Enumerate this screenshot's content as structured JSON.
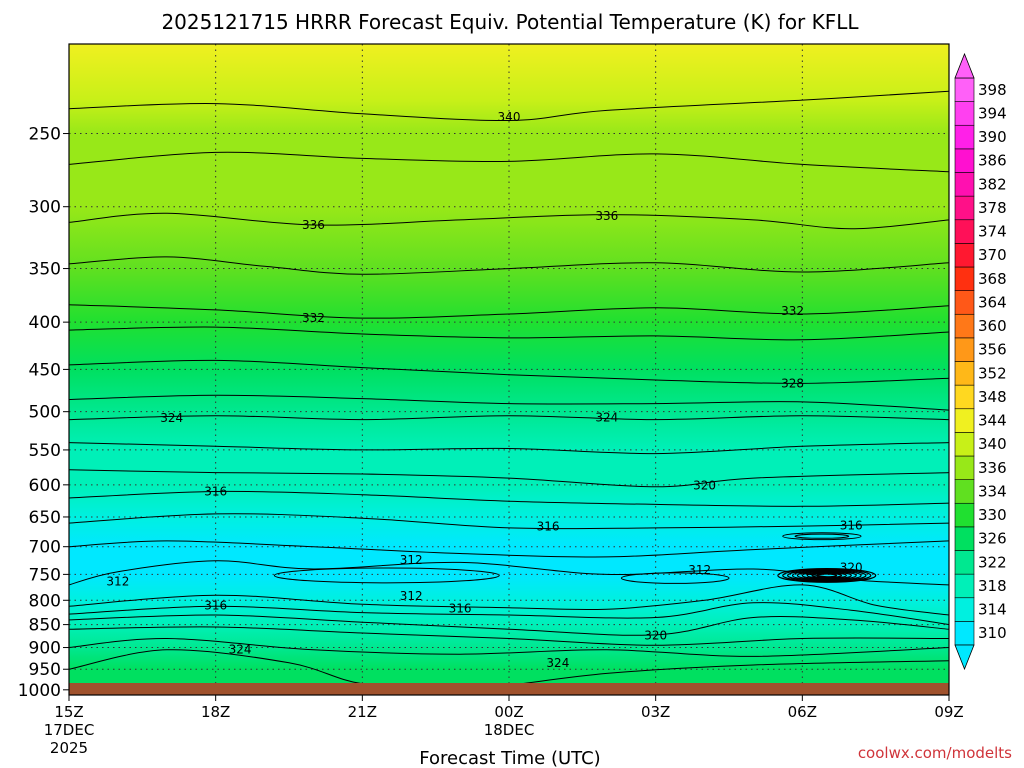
{
  "chart_data": {
    "type": "heatmap",
    "title": "2025121715 HRRR Forecast Equiv. Potential Temperature (K) for KFLL",
    "xlabel": "Forecast Time (UTC)",
    "ylabel": "",
    "credit": "coolwx.com/modelts",
    "x_ticks": [
      {
        "hour": 0,
        "label": "15Z",
        "sub": [
          "17DEC",
          "2025"
        ]
      },
      {
        "hour": 3,
        "label": "18Z",
        "sub": []
      },
      {
        "hour": 6,
        "label": "21Z",
        "sub": []
      },
      {
        "hour": 9,
        "label": "00Z",
        "sub": [
          "18DEC"
        ]
      },
      {
        "hour": 12,
        "label": "03Z",
        "sub": []
      },
      {
        "hour": 15,
        "label": "06Z",
        "sub": []
      },
      {
        "hour": 18,
        "label": "09Z",
        "sub": []
      }
    ],
    "xlim": [
      0,
      18
    ],
    "y_scale": "log-pressure",
    "y_ticks": [
      250,
      300,
      350,
      400,
      450,
      500,
      550,
      600,
      650,
      700,
      750,
      800,
      850,
      900,
      950,
      1000
    ],
    "ylim": [
      1013,
      200
    ],
    "colorbar": {
      "levels": [
        310,
        314,
        318,
        322,
        326,
        330,
        334,
        336,
        340,
        344,
        348,
        352,
        356,
        360,
        364,
        368,
        370,
        374,
        378,
        382,
        386,
        390,
        394,
        398
      ],
      "colors": [
        "#00e8ff",
        "#00f0e0",
        "#00f0b8",
        "#00e890",
        "#00e060",
        "#20e030",
        "#60e020",
        "#98e818",
        "#c8f018",
        "#f0f020",
        "#ffd820",
        "#ffb818",
        "#ff9818",
        "#ff7818",
        "#ff5818",
        "#ff3010",
        "#ff1830",
        "#ff1058",
        "#ff1088",
        "#ff10b0",
        "#ff10d0",
        "#ff20e8",
        "#ff40f0",
        "#ff60f8"
      ]
    },
    "profile": [
      {
        "p": 200,
        "theta": 345
      },
      {
        "p": 230,
        "theta": 341
      },
      {
        "p": 250,
        "theta": 339
      },
      {
        "p": 300,
        "theta": 336.5
      },
      {
        "p": 350,
        "theta": 334
      },
      {
        "p": 400,
        "theta": 331.5
      },
      {
        "p": 450,
        "theta": 329
      },
      {
        "p": 500,
        "theta": 325
      },
      {
        "p": 550,
        "theta": 321
      },
      {
        "p": 600,
        "theta": 318
      },
      {
        "p": 650,
        "theta": 315.5
      },
      {
        "p": 700,
        "theta": 312.5
      },
      {
        "p": 750,
        "theta": 311
      },
      {
        "p": 800,
        "theta": 314
      },
      {
        "p": 850,
        "theta": 319
      },
      {
        "p": 900,
        "theta": 323
      },
      {
        "p": 950,
        "theta": 326
      },
      {
        "p": 1000,
        "theta": 327
      }
    ],
    "contours": [
      {
        "theta": 340,
        "pts": [
          [
            0,
            235
          ],
          [
            3,
            232
          ],
          [
            6,
            238
          ],
          [
            9,
            242
          ],
          [
            11,
            236
          ],
          [
            15,
            230
          ],
          [
            18,
            225
          ]
        ]
      },
      {
        "theta": 338,
        "pts": [
          [
            0,
            270
          ],
          [
            3,
            262
          ],
          [
            6,
            266
          ],
          [
            9,
            268
          ],
          [
            12,
            263
          ],
          [
            15,
            270
          ],
          [
            18,
            275
          ]
        ]
      },
      {
        "theta": 336,
        "pts": [
          [
            0,
            312
          ],
          [
            2,
            305
          ],
          [
            5,
            314
          ],
          [
            8,
            310
          ],
          [
            11,
            306
          ],
          [
            14,
            310
          ],
          [
            16,
            317
          ],
          [
            18,
            310
          ]
        ]
      },
      {
        "theta": 334,
        "pts": [
          [
            0,
            346
          ],
          [
            2,
            340
          ],
          [
            4,
            348
          ],
          [
            6,
            355
          ],
          [
            9,
            350
          ],
          [
            12,
            345
          ],
          [
            15,
            353
          ],
          [
            18,
            345
          ]
        ]
      },
      {
        "theta": 332,
        "pts": [
          [
            0,
            383
          ],
          [
            3,
            388
          ],
          [
            6,
            396
          ],
          [
            9,
            392
          ],
          [
            12,
            386
          ],
          [
            15,
            392
          ],
          [
            18,
            384
          ]
        ]
      },
      {
        "theta": 330,
        "pts": [
          [
            0,
            408
          ],
          [
            3,
            405
          ],
          [
            6,
            412
          ],
          [
            9,
            416
          ],
          [
            12,
            414
          ],
          [
            15,
            418
          ],
          [
            18,
            410
          ]
        ]
      },
      {
        "theta": 328,
        "pts": [
          [
            0,
            445
          ],
          [
            3,
            440
          ],
          [
            6,
            448
          ],
          [
            9,
            456
          ],
          [
            12,
            462
          ],
          [
            15,
            466
          ],
          [
            18,
            460
          ]
        ]
      },
      {
        "theta": 326,
        "pts": [
          [
            0,
            485
          ],
          [
            3,
            480
          ],
          [
            6,
            484
          ],
          [
            9,
            490
          ],
          [
            12,
            490
          ],
          [
            15,
            488
          ],
          [
            18,
            498
          ]
        ]
      },
      {
        "theta": 324,
        "pts": [
          [
            0,
            510
          ],
          [
            3,
            505
          ],
          [
            6,
            510
          ],
          [
            9,
            505
          ],
          [
            12,
            510
          ],
          [
            15,
            505
          ],
          [
            18,
            510
          ]
        ]
      },
      {
        "theta": 322,
        "pts": [
          [
            0,
            540
          ],
          [
            3,
            545
          ],
          [
            6,
            550
          ],
          [
            9,
            548
          ],
          [
            12,
            555
          ],
          [
            15,
            545
          ],
          [
            18,
            540
          ]
        ]
      },
      {
        "theta": 320,
        "pts": [
          [
            0,
            578
          ],
          [
            3,
            582
          ],
          [
            6,
            584
          ],
          [
            9,
            590
          ],
          [
            12,
            603
          ],
          [
            14,
            590
          ],
          [
            18,
            582
          ]
        ]
      },
      {
        "theta": 318,
        "pts": [
          [
            0,
            620
          ],
          [
            3,
            610
          ],
          [
            6,
            615
          ],
          [
            9,
            625
          ],
          [
            12,
            630
          ],
          [
            15,
            633
          ],
          [
            18,
            628
          ]
        ]
      },
      {
        "theta": 316,
        "pts": [
          [
            0,
            660
          ],
          [
            3,
            645
          ],
          [
            6,
            652
          ],
          [
            9,
            668
          ],
          [
            12,
            668
          ],
          [
            15,
            665
          ],
          [
            18,
            660
          ]
        ]
      },
      {
        "theta": 314,
        "pts": [
          [
            0,
            700
          ],
          [
            2,
            690
          ],
          [
            5,
            700
          ],
          [
            8,
            712
          ],
          [
            11,
            718
          ],
          [
            14,
            705
          ],
          [
            18,
            690
          ]
        ]
      },
      {
        "theta": 312,
        "pts": [
          [
            0,
            770
          ],
          [
            1,
            745
          ],
          [
            3,
            725
          ],
          [
            5,
            740
          ],
          [
            8,
            728
          ],
          [
            11,
            750
          ],
          [
            14,
            740
          ],
          [
            16,
            760
          ],
          [
            18,
            770
          ]
        ]
      },
      {
        "theta": 316,
        "pts": [
          [
            0,
            812
          ],
          [
            3,
            790
          ],
          [
            6,
            808
          ],
          [
            9,
            815
          ],
          [
            11,
            818
          ],
          [
            13,
            800
          ],
          [
            15,
            770
          ],
          [
            16.5,
            810
          ],
          [
            18,
            830
          ]
        ]
      },
      {
        "theta": 318,
        "pts": [
          [
            0,
            828
          ],
          [
            3,
            812
          ],
          [
            6,
            825
          ],
          [
            9,
            830
          ],
          [
            12,
            835
          ],
          [
            14,
            805
          ],
          [
            16,
            820
          ],
          [
            18,
            850
          ]
        ]
      },
      {
        "theta": 320,
        "pts": [
          [
            0,
            840
          ],
          [
            3,
            830
          ],
          [
            6,
            845
          ],
          [
            9,
            860
          ],
          [
            12,
            872
          ],
          [
            14,
            835
          ],
          [
            16,
            840
          ],
          [
            18,
            860
          ]
        ]
      },
      {
        "theta": 322,
        "pts": [
          [
            0,
            860
          ],
          [
            3,
            855
          ],
          [
            6,
            868
          ],
          [
            9,
            880
          ],
          [
            12,
            895
          ],
          [
            15,
            880
          ],
          [
            18,
            880
          ]
        ]
      },
      {
        "theta": 324,
        "pts": [
          [
            0,
            900
          ],
          [
            2,
            880
          ],
          [
            5,
            905
          ],
          [
            8,
            915
          ],
          [
            11,
            905
          ],
          [
            14,
            920
          ],
          [
            18,
            900
          ]
        ]
      },
      {
        "theta": 326,
        "pts": [
          [
            0,
            950
          ],
          [
            2,
            905
          ],
          [
            4.5,
            935
          ],
          [
            6,
            985
          ],
          [
            8,
            1000
          ],
          [
            11,
            960
          ],
          [
            14,
            940
          ],
          [
            18,
            930
          ]
        ]
      }
    ],
    "contour_labels": [
      {
        "text": "340",
        "hour": 9.0,
        "p": 240
      },
      {
        "text": "336",
        "hour": 5.0,
        "p": 314
      },
      {
        "text": "336",
        "hour": 11.0,
        "p": 307
      },
      {
        "text": "332",
        "hour": 5.0,
        "p": 396
      },
      {
        "text": "332",
        "hour": 14.8,
        "p": 389
      },
      {
        "text": "328",
        "hour": 14.8,
        "p": 466
      },
      {
        "text": "324",
        "hour": 2.1,
        "p": 508
      },
      {
        "text": "324",
        "hour": 11.0,
        "p": 507
      },
      {
        "text": "320",
        "hour": 13.0,
        "p": 601
      },
      {
        "text": "316",
        "hour": 3.0,
        "p": 610
      },
      {
        "text": "316",
        "hour": 9.8,
        "p": 666
      },
      {
        "text": "316",
        "hour": 16.0,
        "p": 664
      },
      {
        "text": "316",
        "hour": 3.0,
        "p": 810
      },
      {
        "text": "316",
        "hour": 8.0,
        "p": 817
      },
      {
        "text": "312",
        "hour": 7.0,
        "p": 724
      },
      {
        "text": "312",
        "hour": 12.9,
        "p": 742
      },
      {
        "text": "312",
        "hour": 1.0,
        "p": 763
      },
      {
        "text": "312",
        "hour": 7.0,
        "p": 792
      },
      {
        "text": "320",
        "hour": 16.0,
        "p": 737
      },
      {
        "text": "320",
        "hour": 12.0,
        "p": 873
      },
      {
        "text": "324",
        "hour": 3.5,
        "p": 904
      },
      {
        "text": "324",
        "hour": 10.0,
        "p": 935
      }
    ],
    "cold_pockets": [
      {
        "hour": 6.5,
        "p": 752,
        "rh": 2.3,
        "rp": 14
      },
      {
        "hour": 12.4,
        "p": 757,
        "rh": 1.1,
        "rp": 10
      }
    ],
    "dense_cluster": {
      "hour": 15.5,
      "p": 752,
      "rh": 1.0,
      "rp": 13
    },
    "ground_color": "#a0522d",
    "surface_pressure": 1013
  }
}
